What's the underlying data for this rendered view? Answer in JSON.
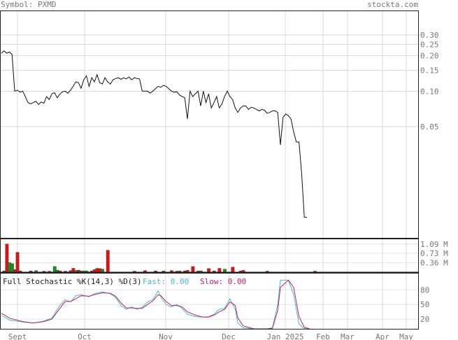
{
  "header": {
    "symbol_label": "Symbol: PXMD",
    "site": "stockta.com"
  },
  "chart_data": [
    {
      "type": "line",
      "panel": "price",
      "scale": "log",
      "yticks": [
        0.3,
        0.25,
        0.2,
        0.15,
        0.1,
        0.05
      ],
      "ytick_labels": [
        "0.30",
        "0.25",
        "0.20",
        "0.15",
        "0.10",
        "0.05"
      ],
      "x_month_labels": [
        "Sept",
        "Oct",
        "Nov",
        "Dec",
        "Jan 2025",
        "Feb",
        "Mar",
        "Apr",
        "May"
      ],
      "grid": true,
      "close": [
        0.21,
        0.22,
        0.21,
        0.215,
        0.205,
        0.1,
        0.102,
        0.098,
        0.1,
        0.09,
        0.08,
        0.078,
        0.08,
        0.082,
        0.077,
        0.081,
        0.079,
        0.09,
        0.085,
        0.095,
        0.097,
        0.088,
        0.094,
        0.099,
        0.1,
        0.096,
        0.102,
        0.11,
        0.12,
        0.118,
        0.106,
        0.125,
        0.135,
        0.11,
        0.13,
        0.12,
        0.138,
        0.118,
        0.115,
        0.13,
        0.12,
        0.115,
        0.125,
        0.128,
        0.13,
        0.126,
        0.13,
        0.127,
        0.132,
        0.125,
        0.13,
        0.128,
        0.127,
        0.1,
        0.1,
        0.1,
        0.096,
        0.1,
        0.105,
        0.11,
        0.108,
        0.112,
        0.11,
        0.105,
        0.1,
        0.098,
        0.099,
        0.093,
        0.09,
        0.088,
        0.058,
        0.1,
        0.09,
        0.095,
        0.1,
        0.075,
        0.1,
        0.08,
        0.095,
        0.072,
        0.08,
        0.09,
        0.072,
        0.078,
        0.09,
        0.1,
        0.09,
        0.085,
        0.072,
        0.066,
        0.072,
        0.075,
        0.075,
        0.07,
        0.073,
        0.072,
        0.07,
        0.068,
        0.07,
        0.069,
        0.065,
        0.066,
        0.068,
        0.068,
        0.066,
        0.035,
        0.06,
        0.064,
        0.062,
        0.058,
        0.045,
        0.037,
        0.037,
        0.02,
        0.0085,
        0.0085
      ]
    },
    {
      "type": "bar",
      "panel": "volume",
      "ytick_labels": [
        "1.09 M",
        "0.73 M",
        "0.36 M"
      ],
      "yticks": [
        1.09,
        0.73,
        0.36
      ],
      "ylim": [
        0,
        1.3
      ],
      "bars": [
        [
          0,
          0,
          "r"
        ],
        [
          1,
          0.05,
          "r"
        ],
        [
          2,
          1.09,
          "r"
        ],
        [
          3,
          0.37,
          "g"
        ],
        [
          4,
          0.33,
          "g"
        ],
        [
          5,
          0.1,
          "r"
        ],
        [
          6,
          0.77,
          "r"
        ],
        [
          7,
          0.05,
          "r"
        ],
        [
          11,
          0.05,
          "r"
        ],
        [
          13,
          0.06,
          "g"
        ],
        [
          16,
          0.04,
          "r"
        ],
        [
          18,
          0.04,
          "g"
        ],
        [
          20,
          0.22,
          "g"
        ],
        [
          21,
          0.08,
          "g"
        ],
        [
          22,
          0.05,
          "r"
        ],
        [
          24,
          0.04,
          "r"
        ],
        [
          26,
          0.06,
          "r"
        ],
        [
          27,
          0.15,
          "r"
        ],
        [
          28,
          0.07,
          "g"
        ],
        [
          29,
          0.08,
          "r"
        ],
        [
          30,
          0.05,
          "g"
        ],
        [
          31,
          0.05,
          "g"
        ],
        [
          32,
          0.05,
          "g"
        ],
        [
          34,
          0.05,
          "r"
        ],
        [
          35,
          0.1,
          "r"
        ],
        [
          36,
          0.15,
          "r"
        ],
        [
          37,
          0.14,
          "r"
        ],
        [
          38,
          0.12,
          "g"
        ],
        [
          40,
          0.85,
          "r"
        ],
        [
          50,
          0.04,
          "r"
        ],
        [
          54,
          0.06,
          "r"
        ],
        [
          58,
          0.05,
          "r"
        ],
        [
          61,
          0.05,
          "g"
        ],
        [
          64,
          0.06,
          "r"
        ],
        [
          66,
          0.04,
          "r"
        ],
        [
          67,
          0.05,
          "g"
        ],
        [
          69,
          0.05,
          "r"
        ],
        [
          70,
          0.07,
          "r"
        ],
        [
          72,
          0.22,
          "r"
        ],
        [
          74,
          0.05,
          "g"
        ],
        [
          75,
          0.05,
          "r"
        ],
        [
          78,
          0.14,
          "r"
        ],
        [
          80,
          0.05,
          "r"
        ],
        [
          82,
          0.15,
          "r"
        ],
        [
          84,
          0.12,
          "g"
        ],
        [
          87,
          0.2,
          "r"
        ],
        [
          90,
          0.05,
          "r"
        ],
        [
          91,
          0.07,
          "r"
        ],
        [
          100,
          0.04,
          "r"
        ],
        [
          118,
          0.04,
          "r"
        ]
      ],
      "colors": {
        "r": "#dd1111",
        "g": "#228822"
      }
    },
    {
      "type": "line",
      "panel": "stochastic",
      "title": "Full Stochastic %K(14,3) %D(3)",
      "fast_label": "Fast: 0.00",
      "slow_label": "Slow: 0.00",
      "ytick_labels": [
        "80",
        "50",
        "20"
      ],
      "yticks": [
        80,
        50,
        20
      ],
      "ylim": [
        0,
        115
      ],
      "series": [
        {
          "name": "Fast",
          "color": "#44bbcc",
          "values": [
            [
              0,
              28
            ],
            [
              3,
              18
            ],
            [
              8,
              14
            ],
            [
              12,
              12
            ],
            [
              16,
              16
            ],
            [
              19,
              22
            ],
            [
              22,
              48
            ],
            [
              24,
              60
            ],
            [
              26,
              55
            ],
            [
              28,
              68
            ],
            [
              30,
              70
            ],
            [
              33,
              66
            ],
            [
              35,
              72
            ],
            [
              38,
              76
            ],
            [
              41,
              72
            ],
            [
              43,
              64
            ],
            [
              45,
              48
            ],
            [
              47,
              40
            ],
            [
              49,
              45
            ],
            [
              51,
              40
            ],
            [
              53,
              44
            ],
            [
              55,
              55
            ],
            [
              57,
              60
            ],
            [
              59,
              78
            ],
            [
              60,
              65
            ],
            [
              62,
              50
            ],
            [
              64,
              45
            ],
            [
              66,
              50
            ],
            [
              68,
              42
            ],
            [
              70,
              30
            ],
            [
              73,
              25
            ],
            [
              76,
              24
            ],
            [
              78,
              25
            ],
            [
              80,
              30
            ],
            [
              82,
              40
            ],
            [
              84,
              42
            ],
            [
              86,
              62
            ],
            [
              88,
              40
            ],
            [
              89,
              12
            ],
            [
              91,
              2
            ],
            [
              95,
              0
            ],
            [
              100,
              0
            ],
            [
              102,
              2
            ],
            [
              104,
              50
            ],
            [
              105,
              100
            ],
            [
              108,
              100
            ],
            [
              110,
              70
            ],
            [
              112,
              10
            ],
            [
              114,
              0
            ],
            [
              116,
              0
            ]
          ]
        },
        {
          "name": "Slow",
          "color": "#bb2266",
          "values": [
            [
              0,
              32
            ],
            [
              3,
              22
            ],
            [
              8,
              15
            ],
            [
              12,
              12
            ],
            [
              16,
              15
            ],
            [
              19,
              20
            ],
            [
              22,
              42
            ],
            [
              24,
              56
            ],
            [
              26,
              56
            ],
            [
              28,
              62
            ],
            [
              30,
              68
            ],
            [
              33,
              67
            ],
            [
              35,
              70
            ],
            [
              38,
              74
            ],
            [
              41,
              73
            ],
            [
              43,
              67
            ],
            [
              45,
              53
            ],
            [
              47,
              43
            ],
            [
              49,
              43
            ],
            [
              51,
              42
            ],
            [
              53,
              42
            ],
            [
              55,
              50
            ],
            [
              57,
              57
            ],
            [
              59,
              70
            ],
            [
              60,
              68
            ],
            [
              62,
              56
            ],
            [
              64,
              48
            ],
            [
              66,
              48
            ],
            [
              68,
              45
            ],
            [
              70,
              35
            ],
            [
              73,
              28
            ],
            [
              76,
              24
            ],
            [
              78,
              24
            ],
            [
              80,
              28
            ],
            [
              82,
              35
            ],
            [
              84,
              40
            ],
            [
              86,
              55
            ],
            [
              88,
              48
            ],
            [
              89,
              22
            ],
            [
              91,
              6
            ],
            [
              95,
              0
            ],
            [
              100,
              0
            ],
            [
              102,
              1
            ],
            [
              104,
              38
            ],
            [
              105,
              85
            ],
            [
              108,
              100
            ],
            [
              110,
              85
            ],
            [
              112,
              25
            ],
            [
              114,
              3
            ],
            [
              116,
              0
            ]
          ]
        }
      ]
    }
  ]
}
